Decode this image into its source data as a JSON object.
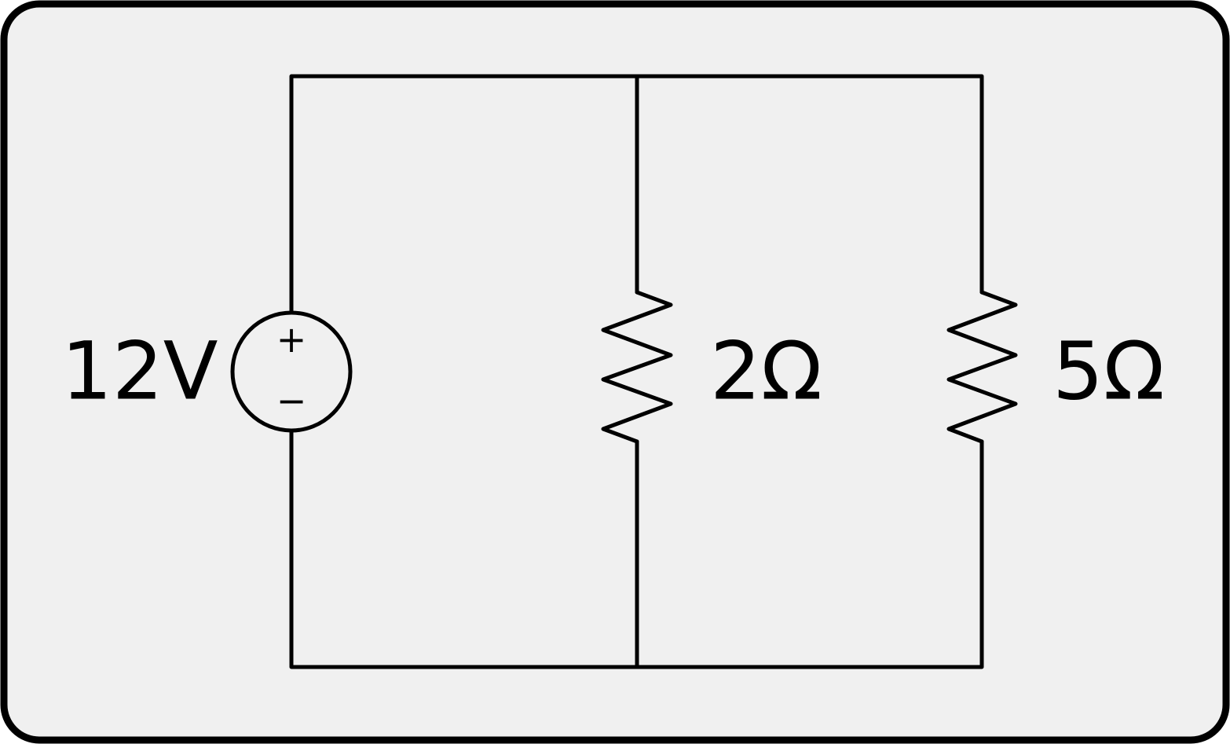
{
  "colors": {
    "background": "#f0f0f0",
    "frame": "#000000",
    "wire": "#000000"
  },
  "circuit": {
    "source": {
      "label": "12V",
      "plus": "+",
      "minus": "−"
    },
    "resistors": [
      {
        "label": "2Ω"
      },
      {
        "label": "5Ω"
      }
    ]
  }
}
